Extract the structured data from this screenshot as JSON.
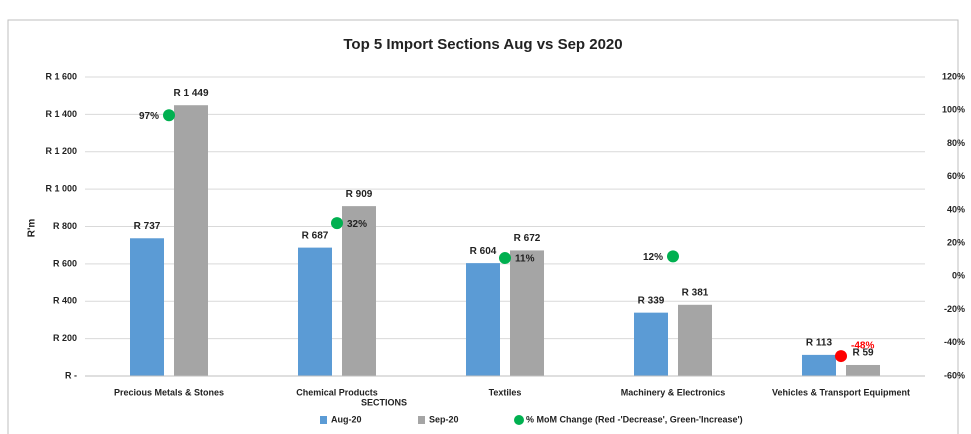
{
  "chart_data": {
    "type": "bar",
    "title": "Top 5 Import Sections Aug vs Sep 2020",
    "x_label": "SECTIONS",
    "y_label": "R'm",
    "categories": [
      "Precious Metals & Stones",
      "Chemical Products",
      "Textiles",
      "Machinery & Electronics",
      "Vehicles & Transport Equipment"
    ],
    "series": [
      {
        "name": "Aug-20",
        "color": "#5b9bd5",
        "values": [
          737,
          687,
          604,
          339,
          113
        ],
        "value_labels": [
          "R 737",
          "R 687",
          "R 604",
          "R 339",
          "R 113"
        ]
      },
      {
        "name": "Sep-20",
        "color": "#a5a5a5",
        "values": [
          1449,
          909,
          672,
          381,
          59
        ],
        "value_labels": [
          "R 1 449",
          "R 909",
          "R 672",
          "R 381",
          "R 59"
        ]
      },
      {
        "name": "% MoM Change (Red -'Decrease', Green-'Increase')",
        "type": "scatter",
        "axis": "y2",
        "color": "#00b050",
        "colors": [
          "#00b050",
          "#00b050",
          "#00b050",
          "#00b050",
          "#ff0000"
        ],
        "values": [
          97,
          32,
          11,
          12,
          -48
        ],
        "value_labels": [
          "97%",
          "32%",
          "11%",
          "12%",
          "-48%"
        ]
      }
    ],
    "ylim": [
      0,
      1600
    ],
    "yticks": [
      {
        "value": 0,
        "label": "R -"
      },
      {
        "value": 200,
        "label": "R 200"
      },
      {
        "value": 400,
        "label": "R 400"
      },
      {
        "value": 600,
        "label": "R 600"
      },
      {
        "value": 800,
        "label": "R 800"
      },
      {
        "value": 1000,
        "label": "R 1 000"
      },
      {
        "value": 1200,
        "label": "R 1 200"
      },
      {
        "value": 1400,
        "label": "R 1 400"
      },
      {
        "value": 1600,
        "label": "R 1 600"
      }
    ],
    "y2lim": [
      -60,
      120
    ],
    "y2ticks": [
      {
        "value": -60,
        "label": "-60%"
      },
      {
        "value": -40,
        "label": "-40%"
      },
      {
        "value": -20,
        "label": "-20%"
      },
      {
        "value": 0,
        "label": "0%"
      },
      {
        "value": 20,
        "label": "20%"
      },
      {
        "value": 40,
        "label": "40%"
      },
      {
        "value": 60,
        "label": "60%"
      },
      {
        "value": 80,
        "label": "80%"
      },
      {
        "value": 100,
        "label": "100%"
      },
      {
        "value": 120,
        "label": "120%"
      }
    ],
    "grid": true,
    "legend": "bottom"
  }
}
